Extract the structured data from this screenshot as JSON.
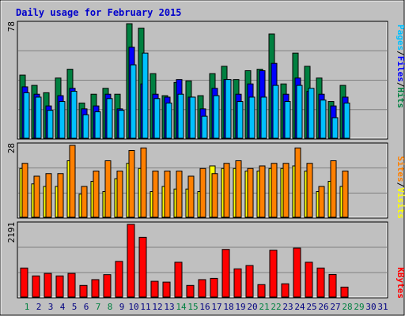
{
  "title": "Daily usage for February 2015",
  "colors": {
    "background": "#c0c0c0",
    "plot_bg": "#c0c0c0",
    "title": "#0000cc",
    "hits": "#008040",
    "files": "#0000ff",
    "pages": "#00c0ff",
    "visits": "#ffff00",
    "sites": "#ff8000",
    "kbytes": "#ff0000",
    "weekday_label": "#000080",
    "weekend_label": "#008040"
  },
  "chart_data": [
    {
      "type": "bar",
      "panel": "hits-files-pages",
      "ymax_label": "78",
      "legend": {
        "pages": "Pages",
        "files": "Files",
        "hits": "Hits",
        "sep": "/"
      },
      "categories": [
        "1",
        "2",
        "3",
        "4",
        "5",
        "6",
        "7",
        "8",
        "9",
        "10",
        "11",
        "12",
        "13",
        "14",
        "15",
        "16",
        "17",
        "18",
        "19",
        "20",
        "21",
        "22",
        "23",
        "24",
        "25",
        "26",
        "27",
        "28",
        "29",
        "30",
        "31"
      ],
      "series": [
        {
          "name": "Hits",
          "values": [
            43,
            36,
            31,
            41,
            47,
            24,
            30,
            34,
            30,
            78,
            75,
            44,
            29,
            38,
            39,
            29,
            44,
            49,
            40,
            46,
            47,
            71,
            37,
            58,
            49,
            41,
            25,
            36,
            0,
            0,
            0
          ]
        },
        {
          "name": "Files",
          "values": [
            35,
            30,
            22,
            29,
            34,
            20,
            22,
            30,
            20,
            62,
            37,
            30,
            28,
            40,
            28,
            20,
            34,
            40,
            30,
            37,
            46,
            51,
            30,
            41,
            32,
            30,
            22,
            28,
            0,
            0,
            0
          ]
        },
        {
          "name": "Pages",
          "values": [
            31,
            28,
            19,
            25,
            32,
            16,
            18,
            27,
            19,
            50,
            58,
            27,
            24,
            30,
            28,
            15,
            29,
            40,
            25,
            28,
            28,
            36,
            25,
            36,
            34,
            26,
            14,
            24,
            0,
            0,
            0
          ]
        }
      ]
    },
    {
      "type": "bar",
      "panel": "visits-sites",
      "ymax_label": "28",
      "legend": {
        "sites": "Sites",
        "visits": "Visits",
        "sep": "/"
      },
      "categories": [
        "1",
        "2",
        "3",
        "4",
        "5",
        "6",
        "7",
        "8",
        "9",
        "10",
        "11",
        "12",
        "13",
        "14",
        "15",
        "16",
        "17",
        "18",
        "19",
        "20",
        "21",
        "22",
        "23",
        "24",
        "25",
        "26",
        "27",
        "28",
        "29",
        "30",
        "31"
      ],
      "series": [
        {
          "name": "Visits",
          "values": [
            19,
            13,
            12,
            12,
            22,
            9,
            14,
            10,
            15,
            21,
            19,
            10,
            12,
            11,
            11,
            10,
            20,
            19,
            19,
            18,
            18,
            19,
            19,
            20,
            18,
            10,
            14,
            12,
            0,
            0,
            0
          ]
        },
        {
          "name": "Sites",
          "values": [
            21,
            16,
            17,
            17,
            28,
            12,
            18,
            22,
            18,
            26,
            27,
            18,
            18,
            18,
            16,
            19,
            17,
            21,
            22,
            19,
            20,
            21,
            21,
            27,
            21,
            12,
            22,
            18,
            0,
            0,
            0
          ]
        }
      ]
    },
    {
      "type": "bar",
      "panel": "kbytes",
      "ymax_label": "2191",
      "legend": {
        "kbytes": "KBytes"
      },
      "categories": [
        "1",
        "2",
        "3",
        "4",
        "5",
        "6",
        "7",
        "8",
        "9",
        "10",
        "11",
        "12",
        "13",
        "14",
        "15",
        "16",
        "17",
        "18",
        "19",
        "20",
        "21",
        "22",
        "23",
        "24",
        "25",
        "26",
        "27",
        "28",
        "29",
        "30",
        "31"
      ],
      "series": [
        {
          "name": "KBytes",
          "values": [
            875,
            637,
            712,
            637,
            712,
            350,
            525,
            675,
            1075,
            2191,
            1801,
            475,
            450,
            1049,
            350,
            525,
            562,
            1435,
            850,
            950,
            375,
            1412,
            400,
            1476,
            1049,
            875,
            680,
            300,
            0,
            0,
            0
          ]
        }
      ]
    }
  ],
  "x_axis": {
    "labels": [
      "1",
      "2",
      "3",
      "4",
      "5",
      "6",
      "7",
      "8",
      "9",
      "10",
      "11",
      "12",
      "13",
      "14",
      "15",
      "16",
      "17",
      "18",
      "19",
      "20",
      "21",
      "22",
      "23",
      "24",
      "25",
      "26",
      "27",
      "28",
      "29",
      "30",
      "31"
    ],
    "weekend": [
      1,
      7,
      8,
      14,
      15,
      21,
      22,
      28,
      29
    ]
  }
}
